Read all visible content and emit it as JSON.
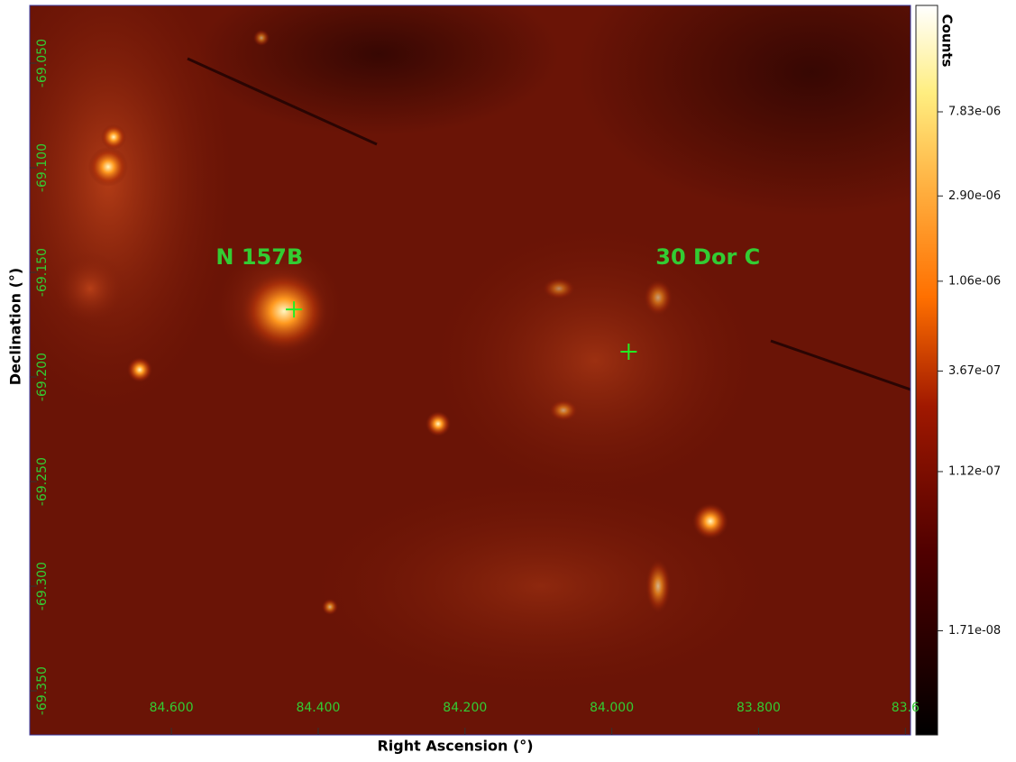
{
  "chart_data": {
    "type": "image",
    "xlabel": "Right Ascension (°)",
    "ylabel": "Declination (°)",
    "xlim": [
      84.793,
      83.593
    ],
    "ylim": [
      -69.3711,
      -69.0224
    ],
    "xticks": [
      {
        "value": 84.6,
        "label": "84.600"
      },
      {
        "value": 84.4,
        "label": "84.400"
      },
      {
        "value": 84.2,
        "label": "84.200"
      },
      {
        "value": 84.0,
        "label": "84.000"
      },
      {
        "value": 83.8,
        "label": "83.800"
      },
      {
        "value": 83.6,
        "label": "83.6"
      }
    ],
    "yticks": [
      {
        "value": -69.05,
        "label": "-69.050"
      },
      {
        "value": -69.1,
        "label": "-69.100"
      },
      {
        "value": -69.15,
        "label": "-69.150"
      },
      {
        "value": -69.2,
        "label": "-69.200"
      },
      {
        "value": -69.25,
        "label": "-69.250"
      },
      {
        "value": -69.3,
        "label": "-69.300"
      },
      {
        "value": -69.35,
        "label": "-69.350"
      }
    ],
    "colorbar": {
      "label": "Counts",
      "scale": "log",
      "clim": [
        5e-09,
        2.75e-05
      ],
      "ticks": [
        {
          "value": 7.83e-06,
          "label": "7.83e-06"
        },
        {
          "value": 2.9e-06,
          "label": "2.90e-06"
        },
        {
          "value": 1.06e-06,
          "label": "1.06e-06"
        },
        {
          "value": 3.67e-07,
          "label": "3.67e-07"
        },
        {
          "value": 1.12e-07,
          "label": "1.12e-07"
        },
        {
          "value": 1.71e-08,
          "label": "1.71e-08"
        }
      ]
    },
    "annotations": [
      {
        "text": "N 157B",
        "x": 84.48,
        "y": -69.1431
      },
      {
        "text": "30 Dor C",
        "x": 83.869,
        "y": -69.1431
      }
    ],
    "markers": {
      "color": "#22ee22",
      "x": [
        84.433,
        83.977
      ],
      "y": [
        -69.1677,
        -69.1879
      ]
    },
    "label_color": "#33cc33"
  }
}
